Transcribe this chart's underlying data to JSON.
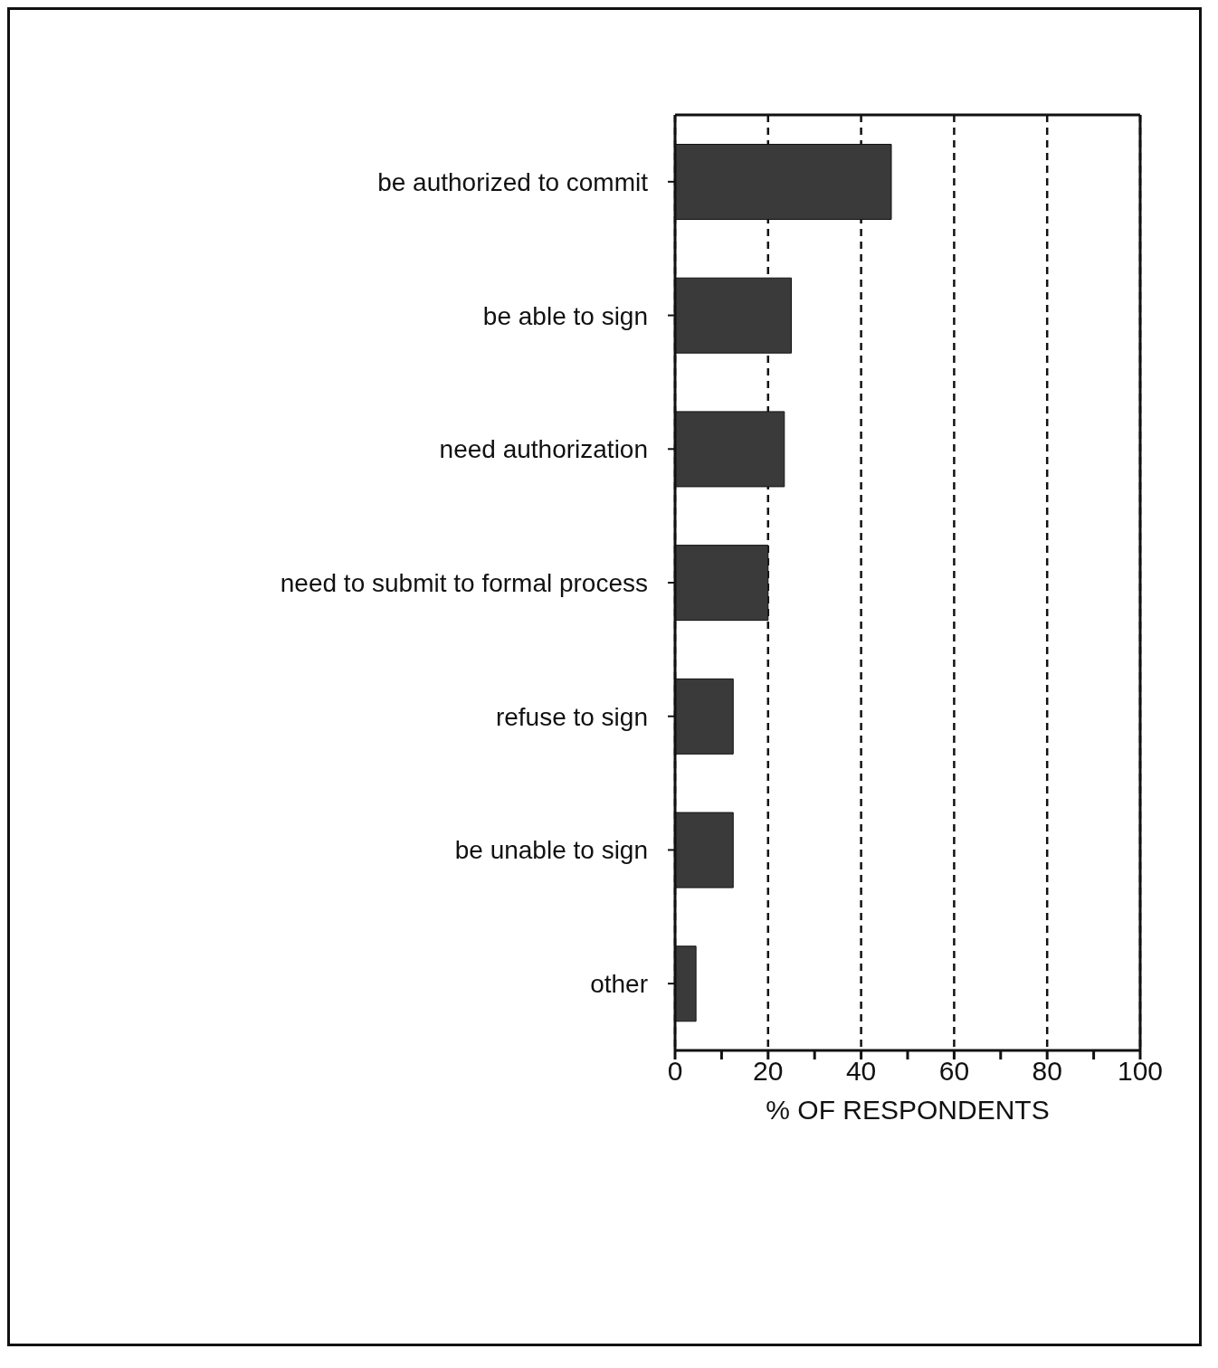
{
  "chart_data": {
    "type": "bar",
    "orientation": "horizontal",
    "categories": [
      "be authorized to commit",
      "be able to sign",
      "need authorization",
      "need to submit to formal process",
      "refuse to sign",
      "be unable to sign",
      "other"
    ],
    "values": [
      46.5,
      25,
      23.5,
      20,
      12.5,
      12.5,
      4.5
    ],
    "color": "#3a3a3a",
    "xlabel": "% OF RESPONDENTS",
    "xlim": [
      0,
      100
    ],
    "xticks": [
      0,
      {
        "value": 10,
        "label": null
      },
      20,
      {
        "value": 30,
        "label": null
      },
      40,
      {
        "value": 50,
        "label": null
      },
      60,
      {
        "value": 70,
        "label": null
      },
      80,
      {
        "value": 90,
        "label": null
      },
      100
    ],
    "grid": "x"
  }
}
